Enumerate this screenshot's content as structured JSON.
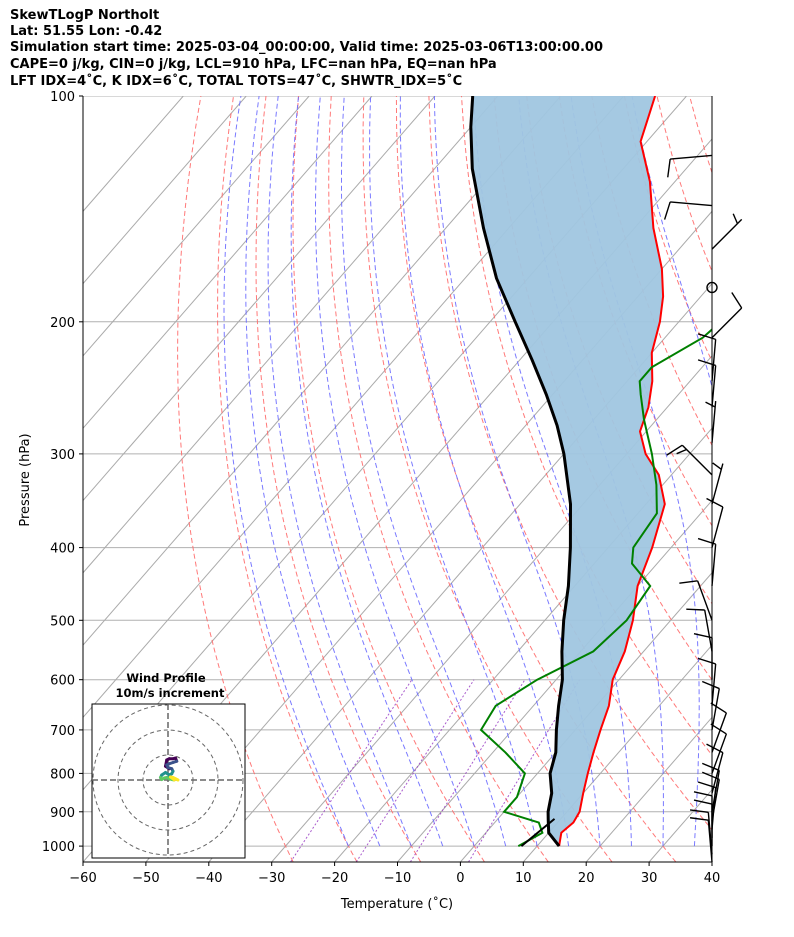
{
  "header": {
    "title": "SkewTLogP Northolt",
    "latlon": "Lat: 51.55   Lon: -0.42",
    "times": "Simulation start time: 2025-03-04_00:00:00, Valid time: 2025-03-06T13:00:00.00",
    "indices1": "CAPE=0 j/kg, CIN=0 j/kg, LCL=910 hPa, LFC=nan hPa, EQ=nan hPa",
    "indices2": "LFT IDX=4˚C, K IDX=6˚C, TOTAL TOTS=47˚C, SHWTR_IDX=5˚C"
  },
  "chart_data": {
    "type": "line",
    "subtype": "skew-T log-P",
    "xlabel": "Temperature (˚C)",
    "ylabel": "Pressure (hPa)",
    "xlim": [
      -60,
      40
    ],
    "ylim": [
      1050,
      100
    ],
    "yscale": "log",
    "x_ticks": [
      "−60",
      "−50",
      "−40",
      "−30",
      "−20",
      "−10",
      "0",
      "10",
      "20",
      "30",
      "40"
    ],
    "y_ticks": [
      "100",
      "200",
      "300",
      "400",
      "500",
      "600",
      "700",
      "800",
      "900",
      "1000"
    ],
    "grid": true,
    "colors": {
      "temperature": "#ff0000",
      "dewpoint": "#008000",
      "parcel": "#000000",
      "cape_shade": "#a0c6e0",
      "dry_adiabats": "#ff6a6a",
      "moist_adiabats": "#6c6cff",
      "mixing_ratio": "#9a40c4",
      "isotherms": "#aaaaaa"
    },
    "series": [
      {
        "key": "temperature",
        "points": [
          [
            13.5,
            1000
          ],
          [
            12,
            960
          ],
          [
            12.5,
            930
          ],
          [
            12,
            900
          ],
          [
            10,
            850
          ],
          [
            8,
            800
          ],
          [
            6,
            750
          ],
          [
            4,
            700
          ],
          [
            2,
            650
          ],
          [
            -1,
            600
          ],
          [
            -3,
            550
          ],
          [
            -6,
            500
          ],
          [
            -10,
            450
          ],
          [
            -13,
            400
          ],
          [
            -17,
            350
          ],
          [
            -22,
            320
          ],
          [
            -27,
            300
          ],
          [
            -31,
            280
          ],
          [
            -33,
            260
          ],
          [
            -36,
            240
          ],
          [
            -40,
            220
          ],
          [
            -43,
            200
          ],
          [
            -46,
            185
          ],
          [
            -50,
            170
          ],
          [
            -57,
            150
          ],
          [
            -64,
            130
          ],
          [
            -71,
            115
          ],
          [
            -75,
            100
          ]
        ]
      },
      {
        "key": "dewpoint",
        "points": [
          [
            7,
            1000
          ],
          [
            9,
            960
          ],
          [
            7,
            930
          ],
          [
            0,
            900
          ],
          [
            0,
            860
          ],
          [
            -2,
            800
          ],
          [
            -8,
            750
          ],
          [
            -15,
            700
          ],
          [
            -16,
            650
          ],
          [
            -13,
            600
          ],
          [
            -8,
            550
          ],
          [
            -7,
            500
          ],
          [
            -8,
            450
          ],
          [
            -14,
            420
          ],
          [
            -16,
            400
          ],
          [
            -17,
            360
          ],
          [
            -21,
            330
          ],
          [
            -26,
            300
          ],
          [
            -32,
            270
          ],
          [
            -36,
            250
          ],
          [
            -38,
            240
          ],
          [
            -38,
            230
          ],
          [
            -34,
            210
          ],
          [
            -33,
            195
          ],
          [
            -35,
            175
          ],
          [
            -35,
            160
          ],
          [
            -37,
            150
          ],
          [
            -43,
            135
          ],
          [
            -48,
            120
          ],
          [
            -58,
            100
          ]
        ]
      },
      {
        "key": "parcel",
        "points": [
          [
            13.5,
            1000
          ],
          [
            10,
            960
          ],
          [
            8,
            920
          ],
          [
            7,
            900
          ],
          [
            5,
            850
          ],
          [
            2,
            800
          ],
          [
            0,
            750
          ],
          [
            -3,
            700
          ],
          [
            -6,
            650
          ],
          [
            -9,
            600
          ],
          [
            -13,
            550
          ],
          [
            -17,
            500
          ],
          [
            -21,
            450
          ],
          [
            -26,
            400
          ],
          [
            -32,
            350
          ],
          [
            -40,
            300
          ],
          [
            -45,
            275
          ],
          [
            -51,
            250
          ],
          [
            -58,
            225
          ],
          [
            -66,
            200
          ],
          [
            -75,
            175
          ],
          [
            -84,
            150
          ],
          [
            -94,
            125
          ],
          [
            -100,
            110
          ],
          [
            -104,
            100
          ]
        ]
      },
      {
        "key": "parcel_low",
        "points": [
          [
            7.5,
            1000
          ],
          [
            9,
            920
          ]
        ]
      }
    ],
    "wind_barbs": [
      {
        "p": 1050,
        "spd": 10,
        "dir": 355
      },
      {
        "p": 1025,
        "spd": 10,
        "dir": 355
      },
      {
        "p": 1000,
        "spd": 10,
        "dir": 0
      },
      {
        "p": 975,
        "spd": 10,
        "dir": 0
      },
      {
        "p": 950,
        "spd": 10,
        "dir": 5
      },
      {
        "p": 925,
        "spd": 10,
        "dir": 10
      },
      {
        "p": 900,
        "spd": 10,
        "dir": 10
      },
      {
        "p": 850,
        "spd": 10,
        "dir": 15
      },
      {
        "p": 800,
        "spd": 10,
        "dir": 20
      },
      {
        "p": 750,
        "spd": 10,
        "dir": 20
      },
      {
        "p": 700,
        "spd": 10,
        "dir": 10
      },
      {
        "p": 650,
        "spd": 10,
        "dir": 5
      },
      {
        "p": 600,
        "spd": 10,
        "dir": 0
      },
      {
        "p": 550,
        "spd": 10,
        "dir": 350
      },
      {
        "p": 500,
        "spd": 10,
        "dir": 340
      },
      {
        "p": 450,
        "spd": 10,
        "dir": 5
      },
      {
        "p": 400,
        "spd": 10,
        "dir": 15
      },
      {
        "p": 350,
        "spd": 5,
        "dir": 15
      },
      {
        "p": 320,
        "spd": 15,
        "dir": 315
      },
      {
        "p": 290,
        "spd": 5,
        "dir": 5
      },
      {
        "p": 260,
        "spd": 10,
        "dir": 5
      },
      {
        "p": 240,
        "spd": 10,
        "dir": 5
      },
      {
        "p": 210,
        "spd": 10,
        "dir": 45
      },
      {
        "p": 180,
        "spd": 0,
        "dir": 0
      },
      {
        "p": 160,
        "spd": 5,
        "dir": 45
      },
      {
        "p": 140,
        "spd": 10,
        "dir": 275
      },
      {
        "p": 120,
        "spd": 10,
        "dir": 265
      }
    ],
    "hodograph": {
      "title": "Wind Profile",
      "subtitle": "10m/s increment",
      "rings": [
        10,
        20,
        30
      ],
      "colormap": [
        "#440154",
        "#3b528b",
        "#21918c",
        "#5ec962",
        "#fde725"
      ],
      "points": [
        [
          0.5,
          4.5
        ],
        [
          -1.0,
          5.5
        ],
        [
          -0.5,
          8.0
        ],
        [
          0.5,
          8.5
        ],
        [
          2.0,
          8.5
        ],
        [
          3.0,
          8.8
        ],
        [
          3.5,
          7.5
        ],
        [
          2.0,
          7.0
        ],
        [
          0.5,
          6.5
        ],
        [
          -0.5,
          6.0
        ],
        [
          0.0,
          5.0
        ],
        [
          1.5,
          4.5
        ],
        [
          2.0,
          3.5
        ],
        [
          1.5,
          2.5
        ],
        [
          0.5,
          2.0
        ],
        [
          -1.0,
          3.0
        ],
        [
          -2.5,
          2.0
        ],
        [
          -3.0,
          1.0
        ],
        [
          -2.5,
          0.2
        ],
        [
          -1.5,
          0.8
        ],
        [
          -0.5,
          1.0
        ],
        [
          0.5,
          0.5
        ],
        [
          1.5,
          0.2
        ],
        [
          2.5,
          0.0
        ],
        [
          2.0,
          0.5
        ],
        [
          1.0,
          1.2
        ],
        [
          2.0,
          1.0
        ],
        [
          3.0,
          0.5
        ],
        [
          4.0,
          0.0
        ]
      ]
    }
  }
}
